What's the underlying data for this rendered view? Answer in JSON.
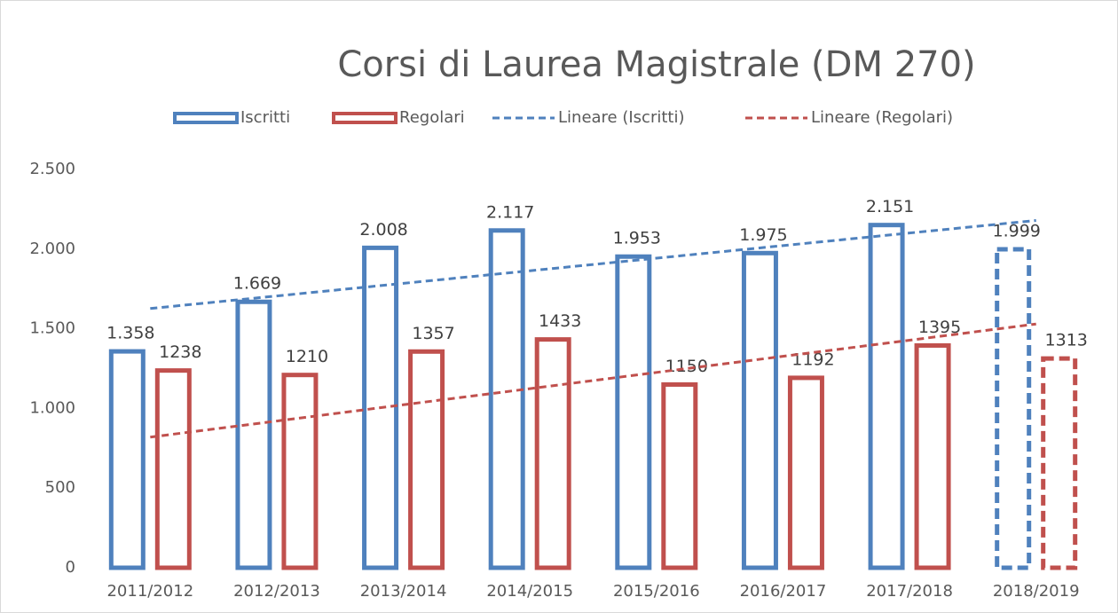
{
  "chart_data": {
    "type": "bar",
    "title": "Corsi di Laurea Magistrale (DM 270)",
    "categories": [
      "2011/2012",
      "2012/2013",
      "2013/2014",
      "2014/2015",
      "2015/2016",
      "2016/2017",
      "2017/2018",
      "2018/2019"
    ],
    "series": [
      {
        "name": "Iscritti",
        "color": "#4f81bd",
        "values": [
          1358,
          1669,
          2008,
          2117,
          1953,
          1975,
          2151,
          1999
        ],
        "value_labels": [
          "1.358",
          "1.669",
          "2.008",
          "2.117",
          "1.953",
          "1.975",
          "2.151",
          "1.999"
        ]
      },
      {
        "name": "Regolari",
        "color": "#c0504d",
        "values": [
          1238,
          1210,
          1357,
          1433,
          1150,
          1192,
          1395,
          1313
        ]
      },
      {
        "name": "Lineare (Iscritti)",
        "type": "line",
        "dashed": true,
        "color": "#4f81bd",
        "values": [
          1627,
          1706,
          1785,
          1864,
          1943,
          2022,
          2101,
          2180
        ]
      },
      {
        "name": "Lineare (Regolari)",
        "type": "line",
        "dashed": true,
        "color": "#c0504d",
        "values": [
          820,
          921,
          1023,
          1124,
          1226,
          1327,
          1428,
          1530
        ]
      }
    ],
    "dashed_last": true,
    "ylim": [
      0,
      2500
    ],
    "yticks": [
      0,
      500,
      {
        "value": 1000,
        "label": "1.000"
      },
      {
        "value": 1500,
        "label": "1.500"
      },
      {
        "value": 2000,
        "label": "2.000"
      },
      {
        "value": 2500,
        "label": "2.500"
      }
    ],
    "legend": "top",
    "grid": false
  }
}
